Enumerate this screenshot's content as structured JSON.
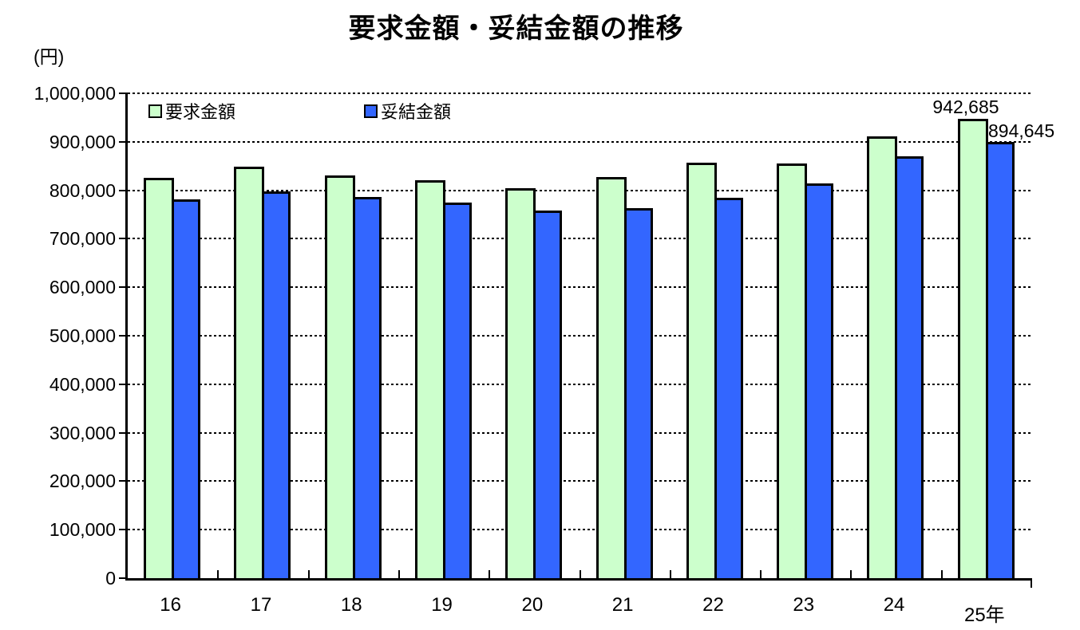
{
  "chart": {
    "title": "要求金額・妥結金額の推移",
    "unit_label": "(円)"
  },
  "chart_data": {
    "type": "bar",
    "title": "要求金額・妥結金額の推移",
    "unit_label": "(円)",
    "xlabel": "",
    "ylabel": "(円)",
    "categories": [
      "16",
      "17",
      "18",
      "19",
      "20",
      "21",
      "22",
      "23",
      "24",
      "25年"
    ],
    "series": [
      {
        "name": "要求金額",
        "color": "#CCFFCC",
        "values": [
          821000,
          843000,
          826000,
          815000,
          800000,
          822000,
          852000,
          850000,
          906000,
          942685
        ]
      },
      {
        "name": "妥結金額",
        "color": "#3366FF",
        "values": [
          777000,
          793000,
          782000,
          770000,
          753000,
          758000,
          780000,
          810000,
          865000,
          894645
        ]
      }
    ],
    "ylim": [
      0,
      1000000
    ],
    "y_tick_interval": 100000,
    "y_tick_labels": [
      "1,000,000",
      "900,000",
      "800,000",
      "700,000",
      "600,000",
      "500,000",
      "400,000",
      "300,000",
      "200,000",
      "100,000",
      "0"
    ],
    "grid": "horizontal-dashed",
    "legend_position": "top-left-inside",
    "bar_border_color": "#000000",
    "annotations": [
      {
        "series": "要求金額",
        "category": "25年",
        "text": "942,685"
      },
      {
        "series": "妥結金額",
        "category": "25年",
        "text": "894,645"
      }
    ]
  }
}
